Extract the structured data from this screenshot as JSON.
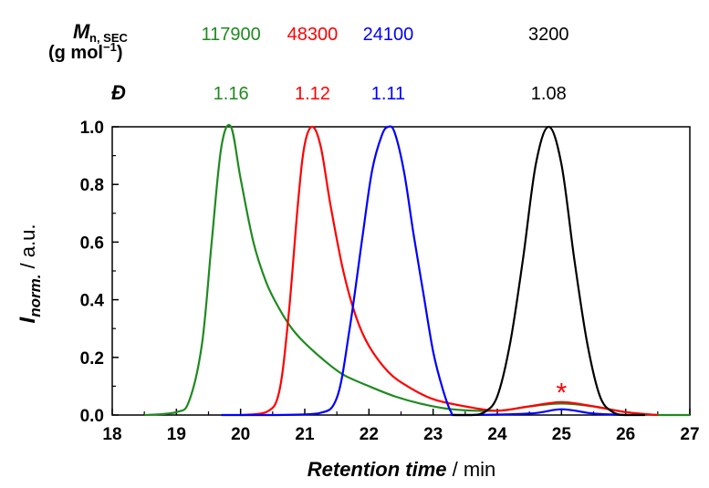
{
  "chart_data": {
    "type": "line",
    "xlabel_italic": "Retention time",
    "xlabel_rest": " / min",
    "ylabel_main": "I",
    "ylabel_sub": "norm.",
    "ylabel_rest": " / a.u.",
    "xlim": [
      18,
      27
    ],
    "ylim": [
      0,
      1.0
    ],
    "xticks": [
      "18",
      "19",
      "20",
      "21",
      "22",
      "23",
      "24",
      "25",
      "26",
      "27"
    ],
    "yticks": [
      "0.0",
      "0.2",
      "0.4",
      "0.6",
      "0.8",
      "1.0"
    ],
    "grid": false,
    "header": {
      "mn_symbol": "M",
      "mn_sub": "n, SEC",
      "mn_unit_pre": "(g mol",
      "mn_unit_sup": "−1",
      "mn_unit_post": ")",
      "disp_symbol": "Đ"
    },
    "series": [
      {
        "color": "#1f8a1f",
        "mn": "117900",
        "dispersity": "1.16",
        "x": [
          18.5,
          19.0,
          19.2,
          19.4,
          19.55,
          19.7,
          19.85,
          20.0,
          20.2,
          20.4,
          20.6,
          20.8,
          21.0,
          21.3,
          21.6,
          22.0,
          22.4,
          22.8,
          23.3,
          24.0,
          24.5,
          25.0,
          25.5,
          26.0,
          26.5,
          27.0
        ],
        "y": [
          0.0,
          0.01,
          0.05,
          0.25,
          0.6,
          0.93,
          1.0,
          0.82,
          0.6,
          0.46,
          0.37,
          0.3,
          0.25,
          0.19,
          0.14,
          0.1,
          0.065,
          0.04,
          0.02,
          0.015,
          0.03,
          0.04,
          0.03,
          0.01,
          0.0,
          0.0
        ]
      },
      {
        "color": "#ff0000",
        "mn": "48300",
        "dispersity": "1.12",
        "x": [
          20.0,
          20.4,
          20.6,
          20.75,
          20.9,
          21.0,
          21.12,
          21.25,
          21.4,
          21.6,
          21.8,
          22.0,
          22.3,
          22.6,
          23.0,
          23.5,
          24.0,
          24.5,
          25.0,
          25.5,
          26.0,
          26.5
        ],
        "y": [
          0.0,
          0.01,
          0.08,
          0.35,
          0.75,
          0.94,
          1.0,
          0.93,
          0.73,
          0.5,
          0.34,
          0.24,
          0.15,
          0.1,
          0.055,
          0.03,
          0.015,
          0.03,
          0.045,
          0.03,
          0.01,
          0.0
        ]
      },
      {
        "color": "#0000ff",
        "mn": "24100",
        "dispersity": "1.11",
        "x": [
          19.7,
          20.5,
          21.2,
          21.5,
          21.7,
          21.9,
          22.05,
          22.2,
          22.3,
          22.4,
          22.55,
          22.7,
          22.85,
          23.0,
          23.15,
          23.28,
          23.4,
          24.5,
          25.0,
          25.5,
          26.0
        ],
        "y": [
          0.0,
          0.0,
          0.005,
          0.06,
          0.3,
          0.62,
          0.85,
          0.97,
          1.0,
          0.98,
          0.84,
          0.62,
          0.42,
          0.22,
          0.09,
          0.01,
          0.0,
          0.005,
          0.02,
          0.005,
          0.0
        ]
      },
      {
        "color": "#000000",
        "mn": "3200",
        "dispersity": "1.08",
        "x": [
          23.3,
          23.6,
          23.8,
          24.0,
          24.2,
          24.4,
          24.6,
          24.8,
          25.0,
          25.2,
          25.4,
          25.6,
          25.8,
          26.0,
          26.3
        ],
        "y": [
          0.0,
          0.0,
          0.01,
          0.065,
          0.25,
          0.54,
          0.87,
          1.0,
          0.87,
          0.54,
          0.25,
          0.065,
          0.01,
          0.0,
          0.0
        ]
      }
    ],
    "annotation": {
      "text": "*",
      "x": 25.0,
      "y": 0.09,
      "color": "#ff0000"
    }
  }
}
